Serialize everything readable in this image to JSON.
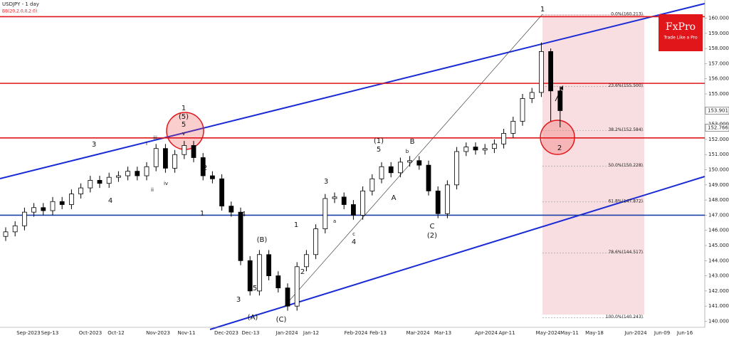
{
  "chart_data": {
    "type": "candlestick",
    "title": "USDJPY - 1 day",
    "subtitle": "BB(20,2.0,0,2.0)",
    "logo": "FxPro",
    "logo_tagline": "Trade Like a Pro",
    "ylim": [
      139.6,
      161.2
    ],
    "yticks": [
      {
        "value": 140,
        "label": "140.000"
      },
      {
        "value": 141,
        "label": "141.000"
      },
      {
        "value": 142,
        "label": "142.000"
      },
      {
        "value": 143,
        "label": "143.000"
      },
      {
        "value": 144,
        "label": "144.000"
      },
      {
        "value": 145,
        "label": "145.000"
      },
      {
        "value": 146,
        "label": "146.000"
      },
      {
        "value": 147,
        "label": "147.000"
      },
      {
        "value": 148,
        "label": "148.000"
      },
      {
        "value": 149,
        "label": "149.000"
      },
      {
        "value": 150,
        "label": "150.000"
      },
      {
        "value": 151,
        "label": "151.000"
      },
      {
        "value": 152,
        "label": "152.000"
      },
      {
        "value": 153,
        "label": "153.000"
      },
      {
        "value": 154,
        "label": "154.000"
      },
      {
        "value": 155,
        "label": "155.000"
      },
      {
        "value": 156,
        "label": "156.000"
      },
      {
        "value": 157,
        "label": "157.000"
      },
      {
        "value": 158,
        "label": "158.000"
      },
      {
        "value": 159,
        "label": "159.000"
      },
      {
        "value": 160,
        "label": "160.000"
      }
    ],
    "xticks": [
      "Sep-2023",
      "Sep-13",
      "Oct-2023",
      "Oct-12",
      "Nov-2023",
      "Nov-11",
      "Dec-2023",
      "Dec-13",
      "Jan-2024",
      "Jan-12",
      "Feb-2024",
      "Feb-13",
      "Mar-2024",
      "Mar-13",
      "Apr-2024",
      "Apr-11",
      "May-2024",
      "May-11",
      "May-18",
      "Jun-2024",
      "Jun-09",
      "Jun-16"
    ],
    "open": [
      145.6,
      145.9,
      146.3,
      147.2,
      147.5,
      147.3,
      147.9,
      147.7,
      148.4,
      148.8,
      149.3,
      149.1,
      149.5,
      149.6,
      149.9,
      149.6,
      150.2,
      151.4,
      150.1,
      151.0,
      151.6,
      150.8,
      149.6,
      149.4,
      147.6,
      147.2,
      144.0,
      142.0,
      144.4,
      143.0,
      142.2,
      141.0,
      143.6,
      144.4,
      146.1,
      148.1,
      148.2,
      147.7,
      147.0,
      148.6,
      149.4,
      150.2,
      149.8,
      150.5,
      150.6,
      150.3,
      148.6,
      147.1,
      149.0,
      151.2,
      151.5,
      151.3,
      151.4,
      151.7,
      152.4,
      153.2,
      154.7,
      155.1,
      157.8,
      155.2
    ],
    "high": [
      146.2,
      146.6,
      147.5,
      147.8,
      147.8,
      148.2,
      148.2,
      148.7,
      149.1,
      149.6,
      149.6,
      149.8,
      149.9,
      150.2,
      150.2,
      150.5,
      151.7,
      151.7,
      151.3,
      151.9,
      151.9,
      151.1,
      149.9,
      149.7,
      147.9,
      147.5,
      144.3,
      144.7,
      144.7,
      143.3,
      142.5,
      143.9,
      144.7,
      146.4,
      148.4,
      148.5,
      148.5,
      148.0,
      148.9,
      149.7,
      150.5,
      150.5,
      150.8,
      150.9,
      150.9,
      150.6,
      148.9,
      149.3,
      151.5,
      151.8,
      151.8,
      151.7,
      152.0,
      152.7,
      153.5,
      155.0,
      155.4,
      158.4,
      158.0,
      155.5
    ],
    "low": [
      145.3,
      145.6,
      146.0,
      146.9,
      147.0,
      147.0,
      147.4,
      147.4,
      148.1,
      148.5,
      148.8,
      148.8,
      149.2,
      149.3,
      149.3,
      149.3,
      149.9,
      149.8,
      149.8,
      150.7,
      150.5,
      149.3,
      149.1,
      147.3,
      146.9,
      143.7,
      141.7,
      141.7,
      142.7,
      141.9,
      140.7,
      140.7,
      143.3,
      144.1,
      145.8,
      147.8,
      147.4,
      146.7,
      146.7,
      148.3,
      149.1,
      149.5,
      149.5,
      150.2,
      150.0,
      148.3,
      146.8,
      146.8,
      148.7,
      150.9,
      151.0,
      151.0,
      151.1,
      151.4,
      152.1,
      152.9,
      154.4,
      154.8,
      153.2,
      152.8
    ],
    "close": [
      145.9,
      146.3,
      147.2,
      147.5,
      147.3,
      147.9,
      147.7,
      148.4,
      148.8,
      149.3,
      149.1,
      149.5,
      149.6,
      149.9,
      149.6,
      150.2,
      151.4,
      150.1,
      151.0,
      151.6,
      150.8,
      149.6,
      149.4,
      147.6,
      147.2,
      144.0,
      142.0,
      144.4,
      143.0,
      142.2,
      141.0,
      143.6,
      144.4,
      146.1,
      148.1,
      148.2,
      147.7,
      147.0,
      148.6,
      149.4,
      150.2,
      149.8,
      150.5,
      150.6,
      150.3,
      148.6,
      147.1,
      149.0,
      151.2,
      151.5,
      151.3,
      151.4,
      151.7,
      152.4,
      153.2,
      154.7,
      155.1,
      157.8,
      155.2,
      153.9
    ],
    "levels": [
      {
        "value": 160.1,
        "color": "#e0161b"
      },
      {
        "value": 155.7,
        "color": "#e0161b"
      },
      {
        "value": 152.1,
        "color": "#e0161b"
      },
      {
        "value": 147.0,
        "color": "#1c3fa8"
      }
    ],
    "fib_levels": [
      {
        "label": "0.0%(160.213)",
        "value": 160.213
      },
      {
        "label": "23.6%(155.500)",
        "value": 155.5
      },
      {
        "label": "38.2%(152.584)",
        "value": 152.584
      },
      {
        "label": "50.0%(150.228)",
        "value": 150.228
      },
      {
        "label": "61.8%(147.872)",
        "value": 147.872
      },
      {
        "label": "78.6%(144.517)",
        "value": 144.517
      },
      {
        "label": "100.0%(140.243)",
        "value": 140.243
      }
    ],
    "price_tags": [
      153.901,
      152.766
    ],
    "annotations": [
      "1",
      "2",
      "1",
      "(5)",
      "5",
      "2",
      "3",
      "4",
      "1",
      "4",
      "(B)",
      "5",
      "3",
      "(A)",
      "(C)",
      "1",
      "2",
      "3",
      "4",
      "(1)",
      "5",
      "A",
      "B",
      "C",
      "(2)",
      "i",
      "ii",
      "iii",
      "iv",
      "v",
      "a",
      "b",
      "c"
    ]
  }
}
